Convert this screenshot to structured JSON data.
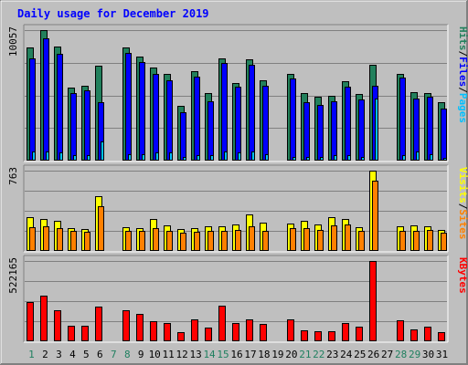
{
  "title": "Daily usage for December 2019",
  "colors": {
    "background": "#bfbfbf",
    "frame": "#808080",
    "title": "#0000ff",
    "hits": "#22805c",
    "files": "#0000ff",
    "pages": "#00c0ff",
    "visits": "#ffff00",
    "sites": "#ff8000",
    "kbytes": "#ff0000",
    "weekday": "#000000",
    "weekend": "#208060"
  },
  "legend_sep": "/",
  "chart_data": {
    "type": "bar",
    "categories": [
      "1",
      "2",
      "3",
      "4",
      "5",
      "6",
      "7",
      "8",
      "9",
      "10",
      "11",
      "12",
      "13",
      "14",
      "15",
      "16",
      "17",
      "18",
      "19",
      "20",
      "21",
      "22",
      "23",
      "24",
      "25",
      "26",
      "27",
      "28",
      "29",
      "30",
      "31"
    ],
    "weekend_days": [
      "1",
      "7",
      "8",
      "14",
      "15",
      "21",
      "22",
      "28",
      "29"
    ],
    "panels": [
      {
        "max_label": "10057",
        "ymax": 10057,
        "legend": [
          {
            "name": "Pages",
            "color": "#00c0ff"
          },
          {
            "name": "Files",
            "color": "#0000ff"
          },
          {
            "name": "Hits",
            "color": "#22805c"
          }
        ],
        "series": [
          {
            "name": "Hits",
            "values": [
              8700,
              10057,
              8800,
              5600,
              5800,
              7300,
              0,
              8700,
              8000,
              7200,
              6700,
              4200,
              6900,
              5200,
              7900,
              6000,
              7800,
              6200,
              0,
              6700,
              5200,
              4900,
              5000,
              6100,
              5100,
              7400,
              0,
              6700,
              5300,
              5200,
              4500
            ]
          },
          {
            "name": "Files",
            "values": [
              7900,
              9400,
              8200,
              5200,
              5400,
              4500,
              0,
              8300,
              7600,
              6700,
              6200,
              3700,
              6500,
              4600,
              7500,
              5700,
              7400,
              5800,
              0,
              6300,
              4500,
              4300,
              4600,
              5700,
              4700,
              5800,
              0,
              6400,
              4800,
              4900,
              4000
            ]
          },
          {
            "name": "Pages",
            "values": [
              700,
              700,
              600,
              400,
              400,
              1500,
              0,
              500,
              500,
              600,
              600,
              300,
              400,
              400,
              700,
              600,
              700,
              500,
              0,
              300,
              300,
              300,
              400,
              400,
              300,
              4800,
              0,
              400,
              700,
              500,
              200
            ]
          }
        ]
      },
      {
        "max_label": "763",
        "ymax": 763,
        "legend": [
          {
            "name": "Sites",
            "color": "#ff8000"
          },
          {
            "name": "Visits",
            "color": "#ffff00"
          }
        ],
        "series": [
          {
            "name": "Visits",
            "values": [
              325,
              300,
              290,
              220,
              210,
              520,
              0,
              225,
              220,
              300,
              245,
              210,
              215,
              230,
              235,
              250,
              345,
              270,
              0,
              260,
              290,
              250,
              325,
              300,
              225,
              763,
              0,
              230,
              240,
              230,
              200
            ]
          },
          {
            "name": "Sites",
            "values": [
              225,
              230,
              220,
              195,
              185,
              425,
              0,
              190,
              190,
              220,
              190,
              175,
              180,
              195,
              195,
              200,
              230,
              190,
              0,
              220,
              220,
              200,
              240,
              250,
              190,
              670,
              0,
              195,
              190,
              200,
              170
            ]
          }
        ]
      },
      {
        "max_label": "522165",
        "ymax": 522165,
        "legend": [
          {
            "name": "KBytes",
            "color": "#ff0000"
          }
        ],
        "series": [
          {
            "name": "KBytes",
            "values": [
              255000,
              295000,
              200000,
              100000,
              100000,
              225000,
              0,
              200000,
              180000,
              130000,
              120000,
              60000,
              145000,
              90000,
              230000,
              120000,
              145000,
              115000,
              0,
              140000,
              70000,
              65000,
              65000,
              120000,
              95000,
              522165,
              0,
              135000,
              75000,
              95000,
              60000
            ]
          }
        ]
      }
    ]
  }
}
